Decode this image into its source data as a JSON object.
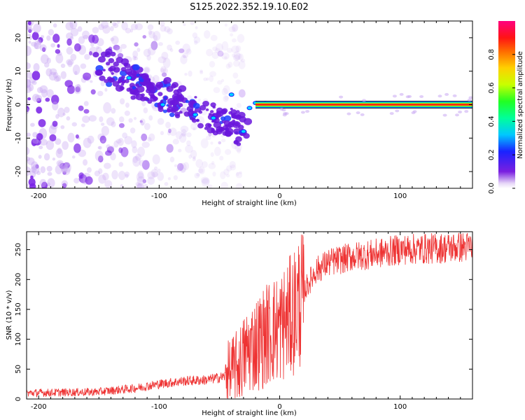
{
  "chart_data": [
    {
      "type": "heatmap",
      "title": "S125.2022.352.19.10.E02",
      "xlabel": "Height of straight line (km)",
      "ylabel": "Frequency (Hz)",
      "xlim": [
        -210,
        160
      ],
      "ylim": [
        -25,
        25
      ],
      "xticks": [
        -200,
        -100,
        0,
        100
      ],
      "yticks": [
        -20,
        -10,
        0,
        10,
        20
      ],
      "colorbar": {
        "label": "Normalized spectral amplitude",
        "range": [
          0,
          1
        ],
        "ticks": [
          "0.0",
          "0.2",
          "0.4",
          "0.6",
          "0.8"
        ],
        "colormap": "rainbow"
      },
      "features": {
        "scatter_region_x": [
          -210,
          -30
        ],
        "scatter_region_y": [
          -25,
          25
        ],
        "diagonal_band_from": [
          -150,
          12
        ],
        "diagonal_band_to": [
          -30,
          -8
        ],
        "coherent_line_start_x": -20,
        "coherent_line_freq": 0.0,
        "line_amplitude": 1.0
      }
    },
    {
      "type": "line",
      "xlabel": "Height of straight line (km)",
      "ylabel": "SNR (10 * v/v)",
      "xlim": [
        -210,
        160
      ],
      "ylim": [
        0,
        280
      ],
      "xticks": [
        -200,
        -100,
        0,
        100
      ],
      "yticks": [
        0,
        50,
        100,
        150,
        200,
        250
      ],
      "series": [
        {
          "color": "#ee3333",
          "x": [
            -210,
            -150,
            -120,
            -100,
            -80,
            -60,
            -45,
            -35,
            -25,
            -15,
            -10,
            0,
            10,
            20,
            30,
            40,
            60,
            80,
            100,
            130,
            160
          ],
          "values": [
            10,
            12,
            18,
            25,
            30,
            32,
            38,
            55,
            85,
            100,
            110,
            120,
            140,
            180,
            215,
            228,
            238,
            243,
            250,
            252,
            255
          ]
        }
      ]
    }
  ]
}
